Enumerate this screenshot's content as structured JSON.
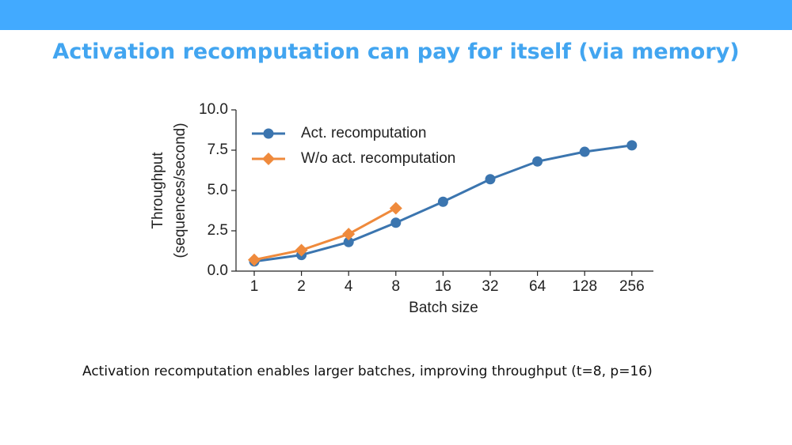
{
  "title": "Activation recomputation can pay for itself (via memory)",
  "caption": "Activation recomputation enables larger batches, improving throughput (t=8, p=16)",
  "chart_data": {
    "type": "line",
    "xlabel": "Batch size",
    "ylabel": [
      "Throughput",
      "(sequences/second)"
    ],
    "categories": [
      "1",
      "2",
      "4",
      "8",
      "16",
      "32",
      "64",
      "128",
      "256"
    ],
    "series": [
      {
        "name": "Act. recomputation",
        "color": "#3b75af",
        "marker": "circle",
        "values": [
          0.6,
          1.0,
          1.8,
          3.0,
          4.3,
          5.7,
          6.8,
          7.4,
          7.8
        ]
      },
      {
        "name": "W/o act. recomputation",
        "color": "#ef8a3c",
        "marker": "diamond",
        "values": [
          0.7,
          1.3,
          2.3,
          3.9,
          null,
          null,
          null,
          null,
          null
        ]
      }
    ],
    "ylim": [
      0,
      10
    ],
    "yticks": [
      {
        "value": 0,
        "label": "0.0"
      },
      {
        "value": 2.5,
        "label": "2.5"
      },
      {
        "value": 5,
        "label": "5.0"
      },
      {
        "value": 7.5,
        "label": "7.5"
      },
      {
        "value": 10,
        "label": "10.0"
      }
    ],
    "legend": "upper left"
  }
}
